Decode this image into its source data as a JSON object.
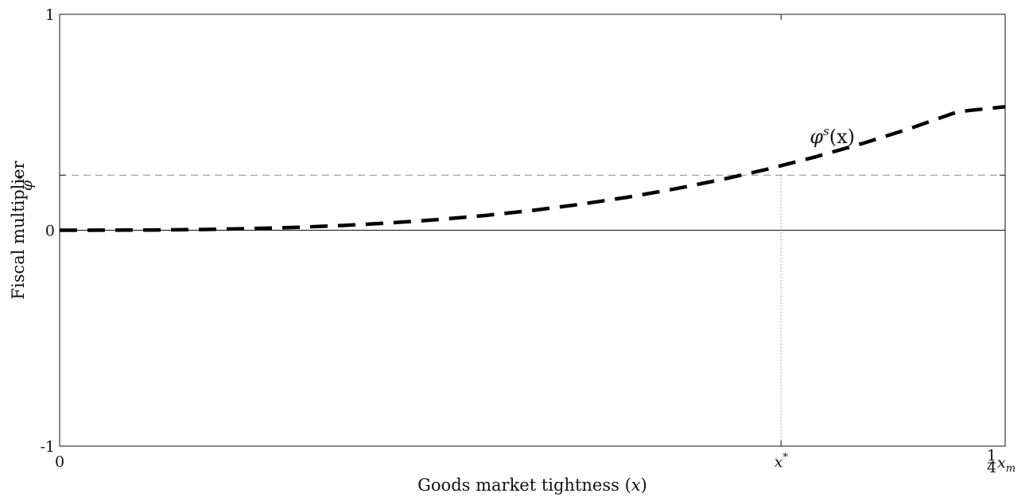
{
  "chart_data": {
    "type": "line",
    "xlabel": "Goods market tightness",
    "xlabel_math": "x",
    "ylabel": "Fiscal multiplier",
    "xlim": [
      0,
      1
    ],
    "ylim": [
      -1,
      1
    ],
    "grid": false,
    "y_ticks": [
      {
        "value": 1,
        "label": "1"
      },
      {
        "value": 0,
        "label": "0"
      },
      {
        "value": -1,
        "label": "-1"
      }
    ],
    "x_ticks": [
      {
        "value": 0,
        "label": "0"
      }
    ],
    "reference_lines": {
      "phi_star": {
        "value": 0.255,
        "label": "φ",
        "sup": "*"
      },
      "x_star": {
        "value": 0.763,
        "label": "x",
        "sup": "*"
      }
    },
    "x_end_label": {
      "frac_num": "1",
      "frac_den": "4",
      "base": "x",
      "sub": "m"
    },
    "series": [
      {
        "name": "φ^s(x)",
        "style": "dashed",
        "color": "#000000",
        "x": [
          0,
          0.05,
          0.1,
          0.15,
          0.2,
          0.25,
          0.3,
          0.35,
          0.4,
          0.45,
          0.5,
          0.55,
          0.6,
          0.65,
          0.7,
          0.75,
          0.8,
          0.85,
          0.9,
          0.95,
          1.0
        ],
        "y": [
          0,
          0.0002,
          0.0011,
          0.0033,
          0.0072,
          0.0133,
          0.0221,
          0.0339,
          0.0492,
          0.0683,
          0.0917,
          0.1196,
          0.1525,
          0.1907,
          0.2344,
          0.2842,
          0.3402,
          0.4028,
          0.4723,
          0.549,
          0.572
        ]
      }
    ],
    "annotations": [
      {
        "text": "φ",
        "sup": "s",
        "suffix": "(x)",
        "x": 0.8,
        "y": 0.43
      }
    ]
  }
}
